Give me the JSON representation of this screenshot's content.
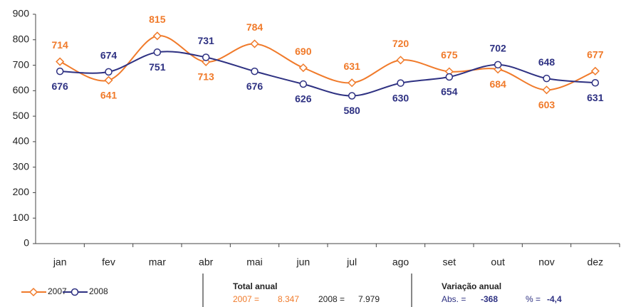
{
  "chart_data": {
    "type": "line",
    "categories": [
      "jan",
      "fev",
      "mar",
      "abr",
      "mai",
      "jun",
      "jul",
      "ago",
      "set",
      "out",
      "nov",
      "dez"
    ],
    "series": [
      {
        "name": "2007",
        "color": "#f07a2a",
        "marker": "diamond",
        "values": [
          714,
          641,
          815,
          713,
          784,
          690,
          631,
          720,
          675,
          684,
          603,
          677
        ]
      },
      {
        "name": "2008",
        "color": "#2e3182",
        "marker": "circle",
        "values": [
          676,
          674,
          751,
          731,
          676,
          626,
          580,
          630,
          654,
          702,
          648,
          631
        ]
      }
    ],
    "ylim": [
      0,
      900
    ],
    "yticks": [
      0,
      100,
      200,
      300,
      400,
      500,
      600,
      700,
      800,
      900
    ],
    "grid": false,
    "smooth": true,
    "legend": "bottom-left"
  },
  "summary": {
    "total": {
      "title": "Total anual",
      "a_label": "2007 =",
      "a_value": "8.347",
      "b_label": "2008 =",
      "b_value": "7.979"
    },
    "variation": {
      "title": "Variação anual",
      "abs_label": "Abs. =",
      "abs_value": "-368",
      "pct_label": "% =",
      "pct_value": "-4,4"
    }
  }
}
